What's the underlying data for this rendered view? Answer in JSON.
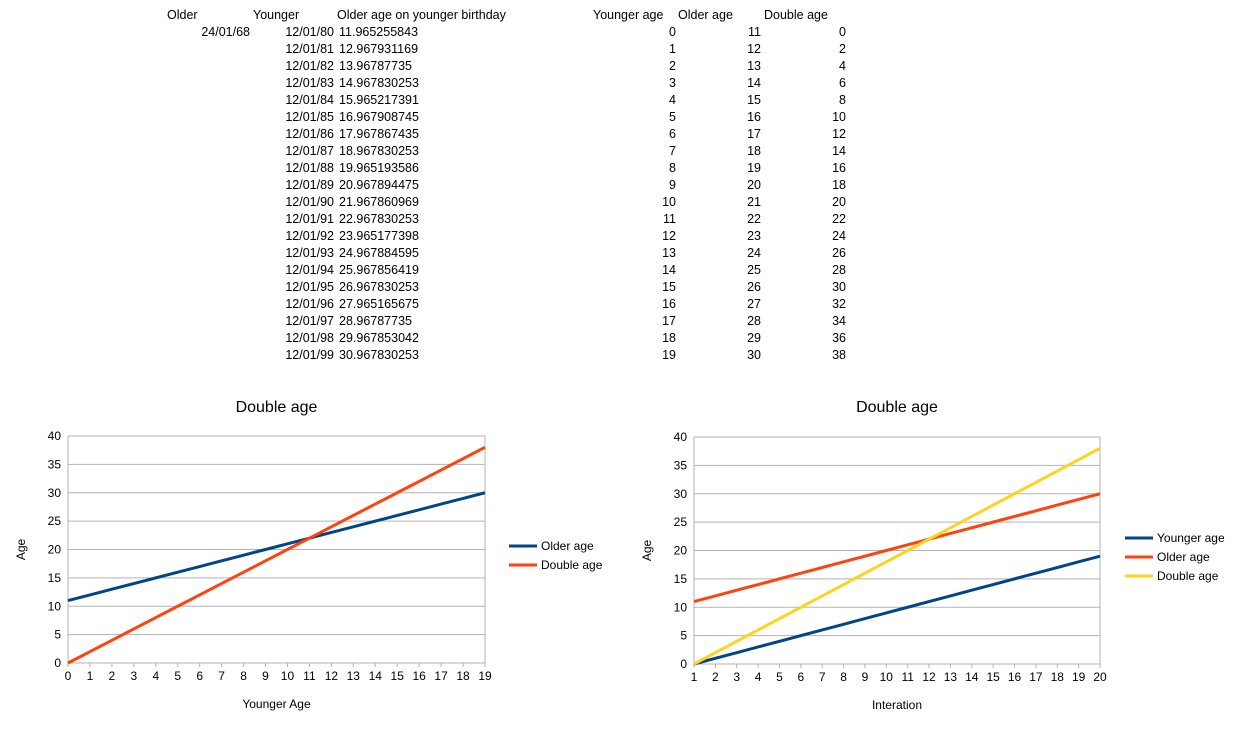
{
  "sheet": {
    "headers": {
      "older": "Older",
      "younger": "Younger",
      "older_age_on_younger_birthday": "Older age on younger birthday",
      "younger_age": "Younger age",
      "older_age": "Older age",
      "double_age": "Double age"
    },
    "older_date": "24/01/68",
    "rows_left": [
      {
        "date": "12/01/80",
        "age": "11.965255843"
      },
      {
        "date": "12/01/81",
        "age": "12.967931169"
      },
      {
        "date": "12/01/82",
        "age": "13.96787735"
      },
      {
        "date": "12/01/83",
        "age": "14.967830253"
      },
      {
        "date": "12/01/84",
        "age": "15.965217391"
      },
      {
        "date": "12/01/85",
        "age": "16.967908745"
      },
      {
        "date": "12/01/86",
        "age": "17.967867435"
      },
      {
        "date": "12/01/87",
        "age": "18.967830253"
      },
      {
        "date": "12/01/88",
        "age": "19.965193586"
      },
      {
        "date": "12/01/89",
        "age": "20.967894475"
      },
      {
        "date": "12/01/90",
        "age": "21.967860969"
      },
      {
        "date": "12/01/91",
        "age": "22.967830253"
      },
      {
        "date": "12/01/92",
        "age": "23.965177398"
      },
      {
        "date": "12/01/93",
        "age": "24.967884595"
      },
      {
        "date": "12/01/94",
        "age": "25.967856419"
      },
      {
        "date": "12/01/95",
        "age": "26.967830253"
      },
      {
        "date": "12/01/96",
        "age": "27.965165675"
      },
      {
        "date": "12/01/97",
        "age": "28.96787735"
      },
      {
        "date": "12/01/98",
        "age": "29.967853042"
      },
      {
        "date": "12/01/99",
        "age": "30.967830253"
      }
    ],
    "rows_right": [
      {
        "younger": "0",
        "older": "11",
        "double": "0"
      },
      {
        "younger": "1",
        "older": "12",
        "double": "2"
      },
      {
        "younger": "2",
        "older": "13",
        "double": "4"
      },
      {
        "younger": "3",
        "older": "14",
        "double": "6"
      },
      {
        "younger": "4",
        "older": "15",
        "double": "8"
      },
      {
        "younger": "5",
        "older": "16",
        "double": "10"
      },
      {
        "younger": "6",
        "older": "17",
        "double": "12"
      },
      {
        "younger": "7",
        "older": "18",
        "double": "14"
      },
      {
        "younger": "8",
        "older": "19",
        "double": "16"
      },
      {
        "younger": "9",
        "older": "20",
        "double": "18"
      },
      {
        "younger": "10",
        "older": "21",
        "double": "20"
      },
      {
        "younger": "11",
        "older": "22",
        "double": "22"
      },
      {
        "younger": "12",
        "older": "23",
        "double": "24"
      },
      {
        "younger": "13",
        "older": "24",
        "double": "26"
      },
      {
        "younger": "14",
        "older": "25",
        "double": "28"
      },
      {
        "younger": "15",
        "older": "26",
        "double": "30"
      },
      {
        "younger": "16",
        "older": "27",
        "double": "32"
      },
      {
        "younger": "17",
        "older": "28",
        "double": "34"
      },
      {
        "younger": "18",
        "older": "29",
        "double": "36"
      },
      {
        "younger": "19",
        "older": "30",
        "double": "38"
      }
    ]
  },
  "chart_data": [
    {
      "type": "line",
      "title": "Double age",
      "xlabel": "Younger Age",
      "ylabel": "Age",
      "x": [
        0,
        1,
        2,
        3,
        4,
        5,
        6,
        7,
        8,
        9,
        10,
        11,
        12,
        13,
        14,
        15,
        16,
        17,
        18,
        19
      ],
      "xlim": [
        0,
        19
      ],
      "ylim": [
        0,
        40
      ],
      "yticks": [
        0,
        5,
        10,
        15,
        20,
        25,
        30,
        35,
        40
      ],
      "grid": true,
      "legend": "right",
      "series": [
        {
          "name": "Older age",
          "color": "#004586",
          "values": [
            11,
            12,
            13,
            14,
            15,
            16,
            17,
            18,
            19,
            20,
            21,
            22,
            23,
            24,
            25,
            26,
            27,
            28,
            29,
            30
          ]
        },
        {
          "name": "Double age",
          "color": "#ff420e",
          "values": [
            0,
            2,
            4,
            6,
            8,
            10,
            12,
            14,
            16,
            18,
            20,
            22,
            24,
            26,
            28,
            30,
            32,
            34,
            36,
            38
          ]
        }
      ]
    },
    {
      "type": "line",
      "title": "Double age",
      "xlabel": "Interation",
      "ylabel": "Age",
      "x": [
        1,
        2,
        3,
        4,
        5,
        6,
        7,
        8,
        9,
        10,
        11,
        12,
        13,
        14,
        15,
        16,
        17,
        18,
        19,
        20
      ],
      "xlim": [
        1,
        20
      ],
      "ylim": [
        0,
        40
      ],
      "yticks": [
        0,
        5,
        10,
        15,
        20,
        25,
        30,
        35,
        40
      ],
      "grid": true,
      "legend": "right",
      "series": [
        {
          "name": "Younger age",
          "color": "#004586",
          "values": [
            0,
            1,
            2,
            3,
            4,
            5,
            6,
            7,
            8,
            9,
            10,
            11,
            12,
            13,
            14,
            15,
            16,
            17,
            18,
            19
          ]
        },
        {
          "name": "Older age",
          "color": "#ff420e",
          "values": [
            11,
            12,
            13,
            14,
            15,
            16,
            17,
            18,
            19,
            20,
            21,
            22,
            23,
            24,
            25,
            26,
            27,
            28,
            29,
            30
          ]
        },
        {
          "name": "Double age",
          "color": "#ffd320",
          "values": [
            0,
            2,
            4,
            6,
            8,
            10,
            12,
            14,
            16,
            18,
            20,
            22,
            24,
            26,
            28,
            30,
            32,
            34,
            36,
            38
          ]
        }
      ]
    }
  ]
}
